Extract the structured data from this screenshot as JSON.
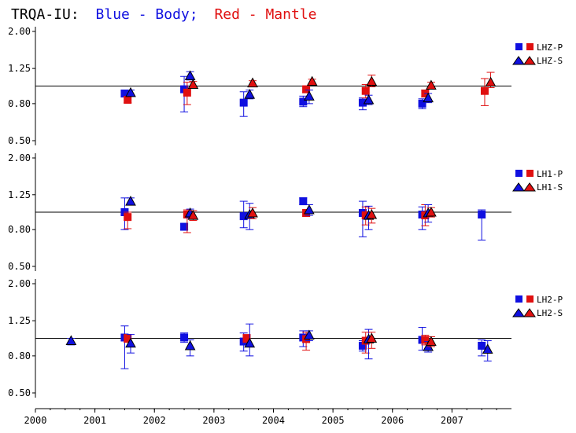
{
  "title": {
    "station": "TRQA-IU:",
    "blue_text": "Blue - Body;",
    "red_text": "Red - Mantle"
  },
  "colors": {
    "body": "#1010e0",
    "mantle": "#e01010",
    "axis": "#000000"
  },
  "chart_data": [
    {
      "type": "scatter",
      "panel": "LHZ",
      "y_scale": "log",
      "ylim": [
        0.5,
        2.0
      ],
      "yticks": [
        "2.00",
        "1.25",
        "0.80",
        "0.50"
      ],
      "xlim": [
        2000,
        2008
      ],
      "xticks": [
        "2000",
        "2001",
        "2002",
        "2003",
        "2004",
        "2005",
        "2006",
        "2007"
      ],
      "reference_line": 1.0,
      "legend": [
        "LHZ-P",
        "LHZ-S"
      ],
      "series": [
        {
          "name": "LHZ-P",
          "component": "body",
          "marker": "square",
          "points": [
            {
              "x": 2001.5,
              "y": 0.91,
              "lo": 0.87,
              "hi": 0.94
            },
            {
              "x": 2002.5,
              "y": 0.96,
              "lo": 0.72,
              "hi": 1.13
            },
            {
              "x": 2003.5,
              "y": 0.81,
              "lo": 0.68,
              "hi": 0.93
            },
            {
              "x": 2004.5,
              "y": 0.82,
              "lo": 0.77,
              "hi": 0.88
            },
            {
              "x": 2005.5,
              "y": 0.81,
              "lo": 0.74,
              "hi": 0.86
            },
            {
              "x": 2006.5,
              "y": 0.8,
              "lo": 0.75,
              "hi": 0.85
            }
          ]
        },
        {
          "name": "LHZ-P",
          "component": "mantle",
          "marker": "square",
          "points": [
            {
              "x": 2001.55,
              "y": 0.84,
              "lo": 0.81,
              "hi": 0.87
            },
            {
              "x": 2002.55,
              "y": 0.92,
              "lo": 0.79,
              "hi": 1.05
            },
            {
              "x": 2004.55,
              "y": 0.96,
              "lo": 0.92,
              "hi": 1.0
            },
            {
              "x": 2005.55,
              "y": 0.94,
              "lo": 0.86,
              "hi": 1.02
            },
            {
              "x": 2006.55,
              "y": 0.91,
              "lo": 0.87,
              "hi": 0.95
            },
            {
              "x": 2007.55,
              "y": 0.94,
              "lo": 0.78,
              "hi": 1.1
            }
          ]
        },
        {
          "name": "LHZ-S",
          "component": "body",
          "marker": "triangle",
          "points": [
            {
              "x": 2001.6,
              "y": 0.92,
              "lo": 0.89,
              "hi": 0.95
            },
            {
              "x": 2002.6,
              "y": 1.14,
              "lo": 1.08,
              "hi": 1.2
            },
            {
              "x": 2003.6,
              "y": 0.9,
              "lo": 0.85,
              "hi": 0.95
            },
            {
              "x": 2004.6,
              "y": 0.88,
              "lo": 0.8,
              "hi": 0.95
            },
            {
              "x": 2005.6,
              "y": 0.84,
              "lo": 0.79,
              "hi": 0.89
            },
            {
              "x": 2006.6,
              "y": 0.86,
              "lo": 0.81,
              "hi": 0.91
            }
          ]
        },
        {
          "name": "LHZ-S",
          "component": "mantle",
          "marker": "triangle",
          "points": [
            {
              "x": 2002.65,
              "y": 1.02,
              "lo": 0.98,
              "hi": 1.06
            },
            {
              "x": 2003.65,
              "y": 1.04,
              "lo": 1.01,
              "hi": 1.07
            },
            {
              "x": 2004.65,
              "y": 1.06,
              "lo": 1.03,
              "hi": 1.09
            },
            {
              "x": 2005.65,
              "y": 1.06,
              "lo": 0.99,
              "hi": 1.15
            },
            {
              "x": 2006.65,
              "y": 1.01,
              "lo": 0.97,
              "hi": 1.05
            },
            {
              "x": 2007.65,
              "y": 1.05,
              "lo": 0.98,
              "hi": 1.19
            }
          ]
        }
      ]
    },
    {
      "type": "scatter",
      "panel": "LH1",
      "y_scale": "log",
      "ylim": [
        0.5,
        2.0
      ],
      "yticks": [
        "2.00",
        "1.25",
        "0.80",
        "0.50"
      ],
      "xlim": [
        2000,
        2008
      ],
      "xticks": [
        "2000",
        "2001",
        "2002",
        "2003",
        "2004",
        "2005",
        "2006",
        "2007"
      ],
      "reference_line": 1.0,
      "legend": [
        "LH1-P",
        "LH1-S"
      ],
      "series": [
        {
          "name": "LH1-P",
          "component": "body",
          "marker": "square",
          "points": [
            {
              "x": 2001.5,
              "y": 1.0,
              "lo": 0.8,
              "hi": 1.2
            },
            {
              "x": 2002.5,
              "y": 0.83,
              "lo": 0.8,
              "hi": 0.86
            },
            {
              "x": 2003.5,
              "y": 0.95,
              "lo": 0.82,
              "hi": 1.15
            },
            {
              "x": 2004.5,
              "y": 1.15,
              "lo": 1.1,
              "hi": 1.2
            },
            {
              "x": 2005.5,
              "y": 0.99,
              "lo": 0.73,
              "hi": 1.15
            },
            {
              "x": 2006.5,
              "y": 0.97,
              "lo": 0.8,
              "hi": 1.07
            },
            {
              "x": 2007.5,
              "y": 0.97,
              "lo": 0.7,
              "hi": 1.03
            }
          ]
        },
        {
          "name": "LH1-P",
          "component": "mantle",
          "marker": "square",
          "points": [
            {
              "x": 2001.55,
              "y": 0.94,
              "lo": 0.81,
              "hi": 1.0
            },
            {
              "x": 2002.55,
              "y": 0.97,
              "lo": 0.77,
              "hi": 1.03
            },
            {
              "x": 2004.55,
              "y": 0.99,
              "lo": 0.95,
              "hi": 1.03
            },
            {
              "x": 2005.55,
              "y": 0.96,
              "lo": 0.85,
              "hi": 1.07
            },
            {
              "x": 2006.55,
              "y": 0.96,
              "lo": 0.84,
              "hi": 1.1
            }
          ]
        },
        {
          "name": "LH1-S",
          "component": "body",
          "marker": "triangle",
          "points": [
            {
              "x": 2001.6,
              "y": 1.15,
              "lo": 1.1,
              "hi": 1.2
            },
            {
              "x": 2002.6,
              "y": 0.99,
              "lo": 0.93,
              "hi": 1.04
            },
            {
              "x": 2003.6,
              "y": 0.97,
              "lo": 0.8,
              "hi": 1.12
            },
            {
              "x": 2004.6,
              "y": 1.03,
              "lo": 0.96,
              "hi": 1.1
            },
            {
              "x": 2005.6,
              "y": 0.96,
              "lo": 0.8,
              "hi": 1.08
            },
            {
              "x": 2006.6,
              "y": 0.99,
              "lo": 0.88,
              "hi": 1.1
            }
          ]
        },
        {
          "name": "LH1-S",
          "component": "mantle",
          "marker": "triangle",
          "points": [
            {
              "x": 2002.65,
              "y": 0.96,
              "lo": 0.9,
              "hi": 1.02
            },
            {
              "x": 2003.65,
              "y": 0.99,
              "lo": 0.92,
              "hi": 1.06
            },
            {
              "x": 2005.65,
              "y": 0.97,
              "lo": 0.87,
              "hi": 1.05
            },
            {
              "x": 2006.65,
              "y": 1.0,
              "lo": 0.94,
              "hi": 1.06
            }
          ]
        }
      ]
    },
    {
      "type": "scatter",
      "panel": "LH2",
      "y_scale": "log",
      "ylim": [
        0.5,
        2.0
      ],
      "yticks": [
        "2.00",
        "1.25",
        "0.80",
        "0.50"
      ],
      "xlim": [
        2000,
        2008
      ],
      "xticks": [
        "2000",
        "2001",
        "2002",
        "2003",
        "2004",
        "2005",
        "2006",
        "2007"
      ],
      "reference_line": 1.0,
      "legend": [
        "LH2-P",
        "LH2-S"
      ],
      "series": [
        {
          "name": "LH2-P",
          "component": "body",
          "marker": "square",
          "points": [
            {
              "x": 2001.5,
              "y": 1.01,
              "lo": 0.68,
              "hi": 1.17
            },
            {
              "x": 2002.5,
              "y": 1.01,
              "lo": 0.95,
              "hi": 1.07
            },
            {
              "x": 2003.5,
              "y": 0.96,
              "lo": 0.85,
              "hi": 1.07
            },
            {
              "x": 2004.5,
              "y": 1.01,
              "lo": 0.9,
              "hi": 1.1
            },
            {
              "x": 2005.5,
              "y": 0.91,
              "lo": 0.85,
              "hi": 0.97
            },
            {
              "x": 2006.5,
              "y": 0.98,
              "lo": 0.86,
              "hi": 1.15
            },
            {
              "x": 2007.5,
              "y": 0.91,
              "lo": 0.8,
              "hi": 0.98
            }
          ]
        },
        {
          "name": "LH2-P",
          "component": "mantle",
          "marker": "square",
          "points": [
            {
              "x": 2001.55,
              "y": 1.0,
              "lo": 0.95,
              "hi": 1.05
            },
            {
              "x": 2003.55,
              "y": 1.0,
              "lo": 0.95,
              "hi": 1.05
            },
            {
              "x": 2004.55,
              "y": 0.99,
              "lo": 0.86,
              "hi": 1.08
            },
            {
              "x": 2005.55,
              "y": 0.97,
              "lo": 0.83,
              "hi": 1.08
            },
            {
              "x": 2006.55,
              "y": 0.98,
              "lo": 0.92,
              "hi": 1.04
            }
          ]
        },
        {
          "name": "LH2-S",
          "component": "body",
          "marker": "triangle",
          "points": [
            {
              "x": 2000.6,
              "y": 0.97,
              "lo": 0.92,
              "hi": 1.0
            },
            {
              "x": 2001.6,
              "y": 0.94,
              "lo": 0.83,
              "hi": 1.05
            },
            {
              "x": 2002.6,
              "y": 0.91,
              "lo": 0.8,
              "hi": 0.98
            },
            {
              "x": 2003.6,
              "y": 0.94,
              "lo": 0.8,
              "hi": 1.2
            },
            {
              "x": 2004.6,
              "y": 1.04,
              "lo": 0.97,
              "hi": 1.1
            },
            {
              "x": 2005.6,
              "y": 0.99,
              "lo": 0.77,
              "hi": 1.12
            },
            {
              "x": 2006.6,
              "y": 0.9,
              "lo": 0.84,
              "hi": 0.96
            },
            {
              "x": 2007.6,
              "y": 0.87,
              "lo": 0.75,
              "hi": 0.97
            }
          ]
        },
        {
          "name": "LH2-S",
          "component": "mantle",
          "marker": "triangle",
          "points": [
            {
              "x": 2005.65,
              "y": 1.0,
              "lo": 0.88,
              "hi": 1.08
            },
            {
              "x": 2006.65,
              "y": 0.96,
              "lo": 0.9,
              "hi": 1.02
            }
          ]
        }
      ]
    }
  ]
}
